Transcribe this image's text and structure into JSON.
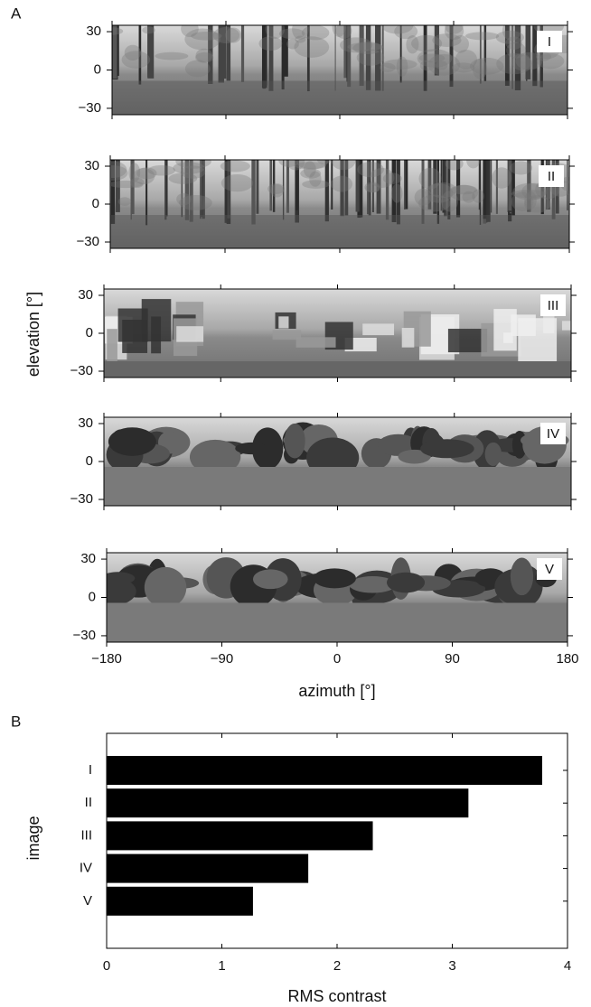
{
  "chart_data": [
    {
      "type": "panorama",
      "panel_label": "A",
      "panels": [
        "I",
        "II",
        "III",
        "IV",
        "V"
      ],
      "xlim": [
        -180,
        180
      ],
      "xticks": [
        {
          "value": -180,
          "label": "−180"
        },
        {
          "value": -90,
          "label": "−90"
        },
        0,
        90,
        180
      ],
      "ylim": [
        -35,
        35
      ],
      "yticks": [
        {
          "value": -30,
          "label": "−30"
        },
        0,
        30
      ],
      "xlabel": "azimuth [°]",
      "ylabel": "elevation [°]"
    },
    {
      "type": "bar",
      "orientation": "horizontal",
      "panel_label": "B",
      "categories": [
        "I",
        "II",
        "III",
        "IV",
        "V"
      ],
      "values": [
        3.78,
        3.14,
        2.31,
        1.75,
        1.27
      ],
      "color": "#000000",
      "xlim": [
        0,
        4
      ],
      "xticks": [
        0,
        1,
        2,
        3,
        4
      ],
      "xlabel": "RMS contrast",
      "ylabel": "image"
    }
  ]
}
